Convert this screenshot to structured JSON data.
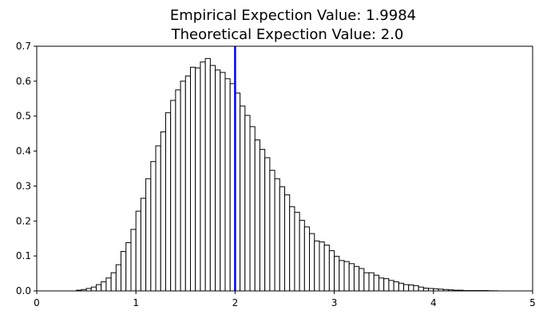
{
  "chart_data": {
    "type": "bar",
    "title_line1": "Empirical Expection Value: 1.9984",
    "title_line2": "Theoretical Expection Value: 2.0",
    "xlabel": "",
    "ylabel": "",
    "xlim": [
      0,
      5
    ],
    "ylim": [
      0,
      0.7
    ],
    "x_ticks": [
      "0",
      "1",
      "2",
      "3",
      "4",
      "5"
    ],
    "y_ticks": [
      "0.0",
      "0.1",
      "0.2",
      "0.3",
      "0.4",
      "0.5",
      "0.6",
      "0.7"
    ],
    "bin_start": 0.4,
    "bin_width": 0.05,
    "values": [
      0.002,
      0.004,
      0.007,
      0.011,
      0.018,
      0.026,
      0.037,
      0.052,
      0.075,
      0.113,
      0.138,
      0.176,
      0.228,
      0.265,
      0.321,
      0.37,
      0.415,
      0.455,
      0.51,
      0.545,
      0.575,
      0.6,
      0.615,
      0.64,
      0.638,
      0.655,
      0.665,
      0.645,
      0.632,
      0.625,
      0.607,
      0.593,
      0.566,
      0.529,
      0.502,
      0.47,
      0.432,
      0.405,
      0.381,
      0.345,
      0.321,
      0.298,
      0.275,
      0.241,
      0.225,
      0.202,
      0.183,
      0.164,
      0.143,
      0.14,
      0.131,
      0.115,
      0.099,
      0.087,
      0.084,
      0.078,
      0.07,
      0.064,
      0.052,
      0.052,
      0.045,
      0.037,
      0.035,
      0.03,
      0.026,
      0.022,
      0.018,
      0.017,
      0.015,
      0.011,
      0.008,
      0.007,
      0.006,
      0.005,
      0.004,
      0.003,
      0.002,
      0.002,
      0.001,
      0.001,
      0.001,
      0.001,
      0.001,
      0.0005,
      0.0003
    ],
    "bar_fill": "#ffffff",
    "bar_edge": "#000000",
    "expectation_line": {
      "x": 2.0,
      "color": "#0000ff"
    },
    "grid": false,
    "legend": "none"
  }
}
